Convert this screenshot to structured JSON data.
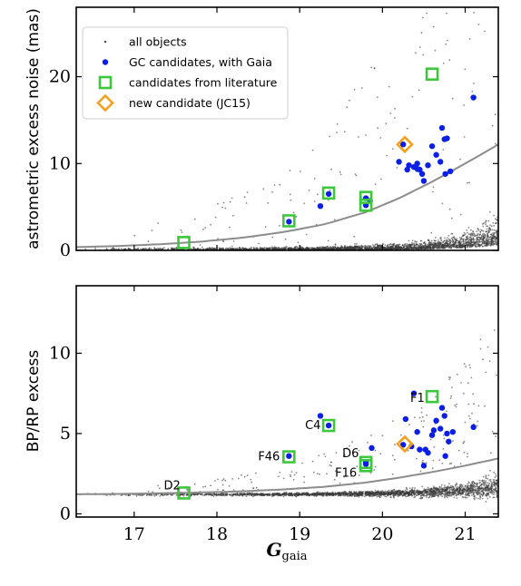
{
  "chart_data": [
    {
      "type": "scatter",
      "panel": "top",
      "xlim": [
        16.3,
        21.4
      ],
      "ylim": [
        0,
        28
      ],
      "ylabel": "astrometric excess noise (mas)",
      "xlabel": "",
      "yticks": [
        0,
        10,
        20
      ],
      "xticks": [
        17,
        18,
        19,
        20,
        21
      ],
      "grid": false,
      "legend": {
        "location": "top-left",
        "entries": [
          {
            "label": "all objects",
            "marker": "small-gray-dot"
          },
          {
            "label": "GC candidates, with Gaia",
            "marker": "blue-dot"
          },
          {
            "label": "candidates from literature",
            "marker": "green-open-square"
          },
          {
            "label": "new candidate (JC15)",
            "marker": "orange-open-diamond"
          }
        ]
      },
      "colors": {
        "all_objects": "#555555",
        "gc": "#0a1ee6",
        "literature": "#3cc83c",
        "new": "#f5a01e",
        "curve": "#8c8c8c"
      },
      "series": [
        {
          "name": "GC candidates, with Gaia",
          "points": [
            [
              18.87,
              3.3
            ],
            [
              19.25,
              5.1
            ],
            [
              19.35,
              6.5
            ],
            [
              19.8,
              5.2
            ],
            [
              19.8,
              6.0
            ],
            [
              19.85,
              5.7
            ],
            [
              20.2,
              10.2
            ],
            [
              20.25,
              12.2
            ],
            [
              20.3,
              9.3
            ],
            [
              20.32,
              9.8
            ],
            [
              20.38,
              9.6
            ],
            [
              20.42,
              10.0
            ],
            [
              20.45,
              9.3
            ],
            [
              20.48,
              8.8
            ],
            [
              20.5,
              8.0
            ],
            [
              20.55,
              9.8
            ],
            [
              20.6,
              12.0
            ],
            [
              20.65,
              11.0
            ],
            [
              20.7,
              10.2
            ],
            [
              20.72,
              14.1
            ],
            [
              20.75,
              12.8
            ],
            [
              20.78,
              12.9
            ],
            [
              20.76,
              8.8
            ],
            [
              20.82,
              9.1
            ],
            [
              21.1,
              17.6
            ],
            [
              20.42,
              9.4
            ]
          ]
        },
        {
          "name": "candidates from literature",
          "points": [
            [
              17.6,
              0.9
            ],
            [
              18.87,
              3.4
            ],
            [
              19.35,
              6.6
            ],
            [
              19.8,
              5.2
            ],
            [
              19.8,
              6.1
            ],
            [
              20.6,
              20.3
            ]
          ]
        },
        {
          "name": "new candidate (JC15)",
          "points": [
            [
              20.27,
              12.2
            ]
          ]
        }
      ],
      "threshold_curve": {
        "x": [
          16.3,
          16.8,
          17.3,
          17.8,
          18.3,
          18.8,
          19.3,
          19.8,
          20.2,
          20.6,
          21.0,
          21.4
        ],
        "y": [
          0.38,
          0.5,
          0.7,
          1.0,
          1.45,
          2.1,
          3.0,
          4.4,
          6.0,
          7.9,
          10.0,
          12.2
        ]
      }
    },
    {
      "type": "scatter",
      "panel": "bottom",
      "xlim": [
        16.3,
        21.4
      ],
      "ylim": [
        -0.2,
        14.2
      ],
      "ylabel": "BP/RP excess",
      "xlabel": "G_gaia",
      "yticks": [
        0,
        5,
        10
      ],
      "xticks": [
        17,
        18,
        19,
        20,
        21
      ],
      "grid": false,
      "series": [
        {
          "name": "GC candidates, with Gaia",
          "points": [
            [
              18.87,
              3.6
            ],
            [
              19.25,
              6.1
            ],
            [
              19.35,
              5.5
            ],
            [
              19.8,
              3.1
            ],
            [
              19.8,
              3.2
            ],
            [
              19.87,
              4.1
            ],
            [
              20.25,
              4.3
            ],
            [
              20.28,
              5.9
            ],
            [
              20.35,
              4.2
            ],
            [
              20.38,
              7.5
            ],
            [
              20.42,
              5.1
            ],
            [
              20.45,
              4.0
            ],
            [
              20.5,
              3.0
            ],
            [
              20.52,
              4.0
            ],
            [
              20.55,
              3.8
            ],
            [
              20.6,
              4.9
            ],
            [
              20.62,
              5.2
            ],
            [
              20.65,
              5.8
            ],
            [
              20.7,
              5.3
            ],
            [
              20.72,
              6.6
            ],
            [
              20.75,
              6.1
            ],
            [
              20.78,
              5.0
            ],
            [
              20.8,
              4.5
            ],
            [
              20.85,
              5.1
            ],
            [
              20.76,
              3.6
            ],
            [
              21.1,
              5.4
            ]
          ]
        },
        {
          "name": "candidates from literature",
          "points": [
            [
              17.6,
              1.3
            ],
            [
              18.87,
              3.55
            ],
            [
              19.35,
              5.5
            ],
            [
              19.8,
              3.0
            ],
            [
              19.8,
              3.2
            ],
            [
              20.6,
              7.3
            ]
          ]
        },
        {
          "name": "new candidate (JC15)",
          "points": [
            [
              20.27,
              4.35
            ]
          ]
        }
      ],
      "threshold_curve": {
        "x": [
          16.3,
          16.8,
          17.3,
          17.8,
          18.3,
          18.8,
          19.3,
          19.8,
          20.2,
          20.6,
          21.0,
          21.4
        ],
        "y": [
          1.22,
          1.24,
          1.28,
          1.33,
          1.4,
          1.52,
          1.68,
          1.95,
          2.25,
          2.6,
          3.0,
          3.45
        ]
      },
      "annotations": [
        {
          "text": "D2",
          "x": 17.6,
          "y": 1.3,
          "anchor": "upper-left"
        },
        {
          "text": "F46",
          "x": 18.87,
          "y": 3.55,
          "anchor": "left"
        },
        {
          "text": "C4",
          "x": 19.35,
          "y": 5.5,
          "anchor": "left"
        },
        {
          "text": "D6",
          "x": 19.8,
          "y": 3.2,
          "anchor": "upper-left"
        },
        {
          "text": "F16",
          "x": 19.8,
          "y": 3.0,
          "anchor": "lower-left"
        },
        {
          "text": "F1",
          "x": 20.6,
          "y": 7.3,
          "anchor": "lower-left"
        }
      ]
    }
  ]
}
